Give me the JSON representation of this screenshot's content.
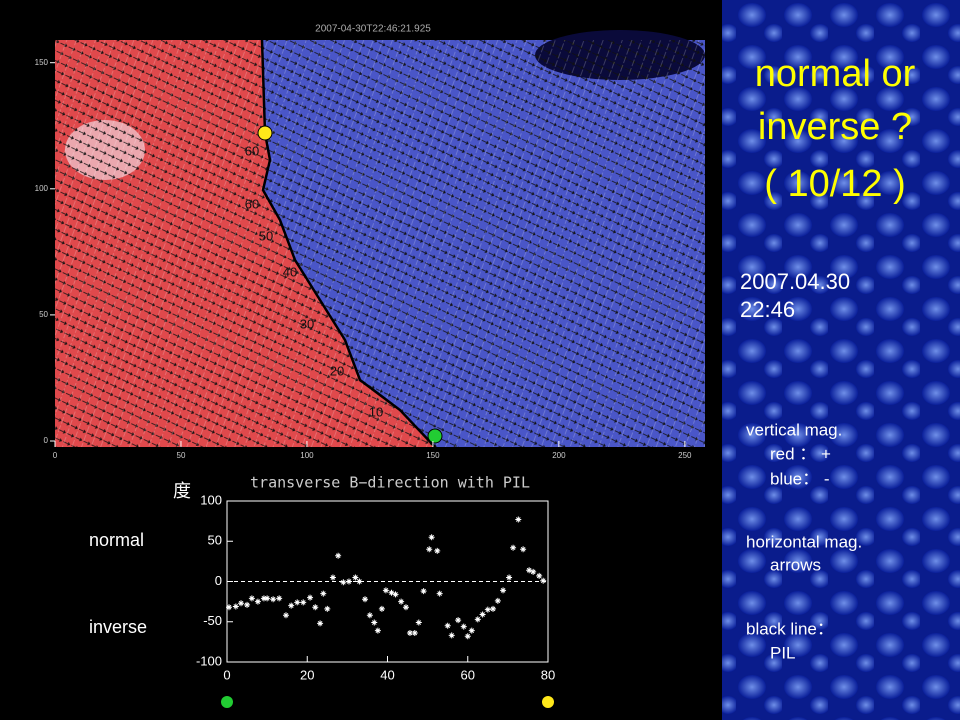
{
  "chart_data": [
    {
      "type": "image",
      "title": "2007-04-30T22:46:21.925",
      "xlim": [
        0,
        258
      ],
      "ylim": [
        0,
        159
      ],
      "xticks": [
        0,
        50,
        100,
        150,
        200,
        250
      ],
      "yticks": [
        0,
        50,
        100,
        150
      ],
      "annotations": [
        "60",
        "60",
        "50",
        "40",
        "30",
        "20",
        "10"
      ]
    },
    {
      "type": "scatter",
      "title": "transverse B−direction with PIL",
      "ylabel": "度",
      "color": "#ffffff",
      "xlim": [
        0,
        80
      ],
      "ylim": [
        -100,
        100
      ],
      "xticks": [
        0,
        20,
        40,
        60,
        80
      ],
      "yticks": [
        -100,
        -50,
        0,
        50,
        100
      ],
      "hline": 0,
      "annotations": [
        "normal",
        "inverse"
      ],
      "x": [
        0.5,
        2.2,
        3.5,
        5,
        6.2,
        7.7,
        9.2,
        10,
        11.5,
        13,
        14.7,
        16,
        17.5,
        19,
        20.7,
        22,
        23.2,
        24,
        25,
        26.4,
        27.7,
        29,
        30.4,
        32,
        33,
        34.4,
        35.6,
        36.7,
        37.6,
        38.6,
        39.6,
        41,
        42,
        43.4,
        44.6,
        45.6,
        46.8,
        47.8,
        49,
        50.4,
        51,
        52.4,
        53,
        55,
        56,
        57.6,
        59,
        60,
        61,
        62.5,
        63.7,
        65,
        66.3,
        67.5,
        68.8,
        70.3,
        71.3,
        72.6,
        73.8,
        75.3,
        76.3,
        77.8,
        78.8
      ],
      "values": [
        -32,
        -31,
        -27,
        -29,
        -21,
        -25,
        -21,
        -21,
        -22,
        -21,
        -42,
        -30,
        -26,
        -26,
        -20,
        -32,
        -52,
        -15,
        -34,
        5,
        32,
        -1,
        0,
        5,
        0,
        -22,
        -42,
        -51,
        -61,
        -34,
        -11,
        -14,
        -16,
        -25,
        -32,
        -64,
        -64,
        -51,
        -12,
        40,
        55,
        38,
        -15,
        -55,
        -67,
        -48,
        -56,
        -68,
        -61,
        -47,
        -41,
        -35,
        -34,
        -24,
        -11,
        5,
        42,
        77,
        40,
        14,
        12,
        7,
        1
      ]
    }
  ],
  "slide": {
    "title": [
      "normal or",
      "inverse ?",
      "( 10/12 )"
    ],
    "date": "2007.04.30",
    "time": "22:46",
    "legend": [
      "vertical mag.",
      "red ： +",
      "blue： -",
      "horizontal mag.",
      "arrows",
      "black line：",
      "PIL"
    ]
  }
}
